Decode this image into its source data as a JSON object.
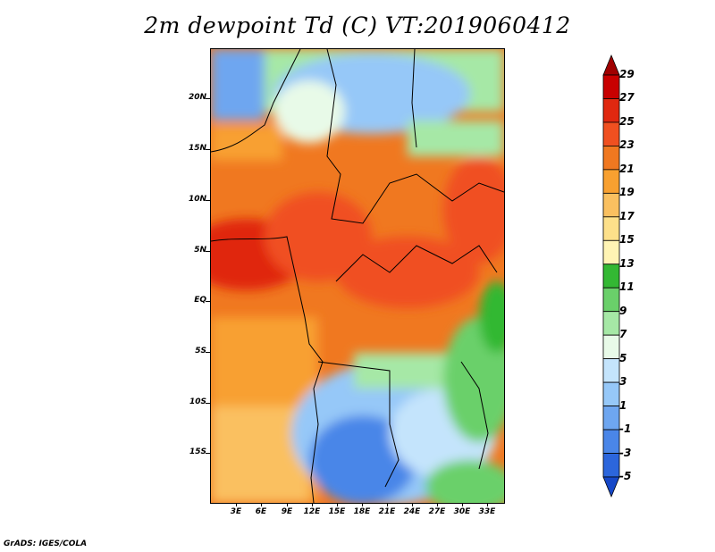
{
  "title": "2m dewpoint Td (C) VT:2019060412",
  "credit": "GrADS: IGES/COLA",
  "lat_labels": [
    "20N",
    "15N",
    "10N",
    "5N",
    "EQ",
    "5S",
    "10S",
    "15S"
  ],
  "lon_labels": [
    "3E",
    "6E",
    "9E",
    "12E",
    "15E",
    "18E",
    "21E",
    "24E",
    "27E",
    "30E",
    "33E"
  ],
  "colorbar": {
    "labels": [
      "29",
      "27",
      "25",
      "23",
      "21",
      "19",
      "17",
      "15",
      "13",
      "11",
      "9",
      "7",
      "5",
      "3",
      "1",
      "-1",
      "-3",
      "-5"
    ],
    "colors": [
      "#a00000",
      "#c80000",
      "#e02810",
      "#f05020",
      "#f07820",
      "#f8a030",
      "#fac060",
      "#fde08a",
      "#fff4b4",
      "#33b833",
      "#6ad06a",
      "#a6e8a6",
      "#e8fae8",
      "#c4e4fc",
      "#96c8f8",
      "#6ea6f0",
      "#4a86e8",
      "#2c66dc",
      "#1648c8"
    ]
  }
}
